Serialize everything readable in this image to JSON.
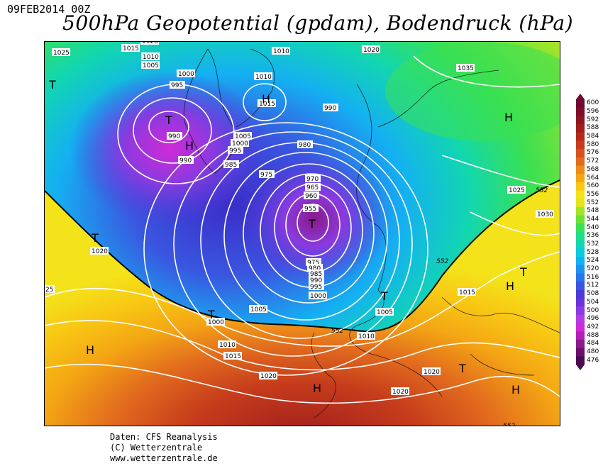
{
  "header": {
    "date": "09FEB2014 00Z",
    "title": "500hPa Geopotential (gpdam), Bodendruck (hPa)"
  },
  "map": {
    "palette": {
      "476": "#4b0a4e",
      "480": "#6b0f6b",
      "484": "#8a1a8a",
      "488": "#b020b4",
      "492": "#d02ad6",
      "496": "#b23ce0",
      "500": "#8a3ae0",
      "504": "#6a32d8",
      "508": "#4a3ad8",
      "512": "#3a56e0",
      "516": "#2c72e8",
      "520": "#1e92f0",
      "524": "#14b0f2",
      "528": "#0ccae0",
      "532": "#12d6b0",
      "536": "#1ede86",
      "540": "#3ae052",
      "544": "#6ae234",
      "548": "#a2e42a",
      "552": "#e0e61c",
      "556": "#f4e21a",
      "560": "#f8c814",
      "564": "#f4a614",
      "568": "#ec8a1a",
      "572": "#e26c1e",
      "576": "#d6521e",
      "580": "#c63c1c",
      "584": "#b42a1a",
      "588": "#a01e1e",
      "592": "#8e1622",
      "596": "#7e0e28",
      "600": "#6e0a30"
    },
    "pressure_labels": [
      "1025",
      "1015",
      "1020",
      "1010",
      "1005",
      "1000",
      "995",
      "990",
      "1010",
      "1015",
      "1005",
      "1000",
      "995",
      "990",
      "985",
      "1010",
      "1020",
      "990",
      "980",
      "975",
      "970",
      "965",
      "960",
      "955",
      "975",
      "980",
      "985",
      "990",
      "995",
      "1000",
      "1005",
      "1035",
      "1025",
      "1030",
      "1020",
      "1015",
      "1005",
      "1000",
      "1010",
      "1015",
      "1020",
      "1020",
      "1020",
      "1010",
      "25"
    ],
    "pressure_centers": [
      "T",
      "T",
      "H",
      "H",
      "H",
      "T",
      "T",
      "T",
      "T",
      "H",
      "T",
      "T",
      "H",
      "H",
      "H",
      "T"
    ],
    "contour_552_labels": [
      "552",
      "552",
      "552",
      "552"
    ]
  },
  "colorbar": {
    "levels": [
      "600",
      "596",
      "592",
      "588",
      "584",
      "580",
      "576",
      "572",
      "568",
      "564",
      "560",
      "556",
      "552",
      "548",
      "544",
      "540",
      "536",
      "532",
      "528",
      "524",
      "520",
      "516",
      "512",
      "508",
      "504",
      "500",
      "496",
      "492",
      "488",
      "484",
      "480",
      "476"
    ]
  },
  "credits": {
    "line1": "Daten: CFS Reanalysis",
    "line2": "(C) Wetterzentrale",
    "line3": "www.wetterzentrale.de"
  }
}
